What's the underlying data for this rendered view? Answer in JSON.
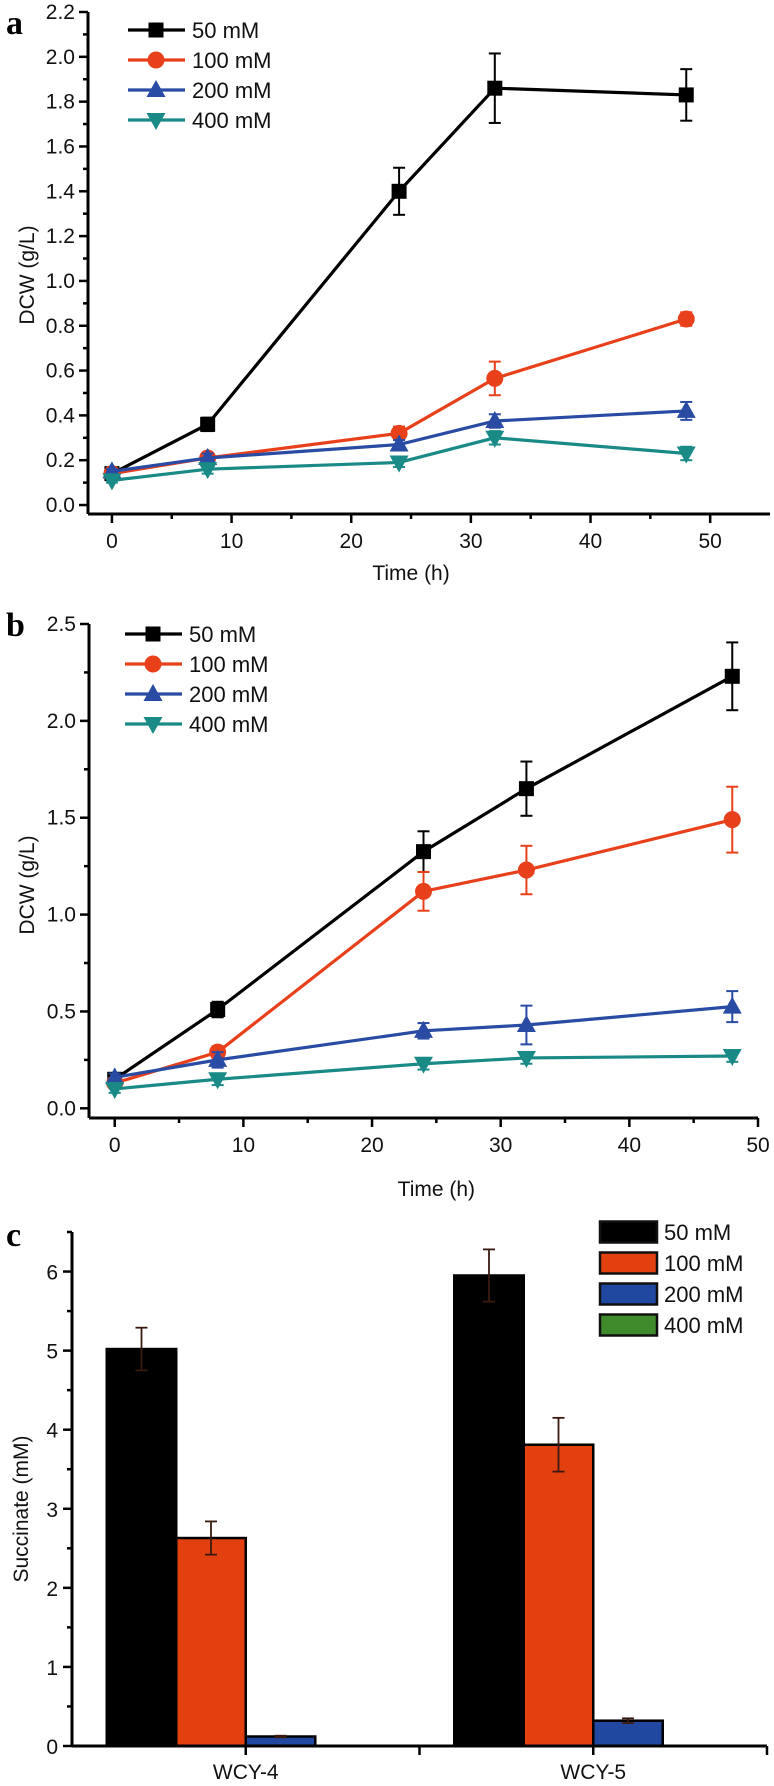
{
  "chart_data": [
    {
      "type": "line",
      "panel_label": "a",
      "xlabel": "Time (h)",
      "ylabel": "DCW (g/L)",
      "xlim": [
        -2,
        55
      ],
      "ylim": [
        -0.04,
        2.2
      ],
      "x": [
        0,
        8,
        24,
        32,
        48
      ],
      "xticks": [
        "0",
        "10",
        "20",
        "30",
        "40",
        "50"
      ],
      "yticks": [
        "0.0",
        "0.2",
        "0.4",
        "0.6",
        "0.8",
        "1.0",
        "1.2",
        "1.4",
        "1.6",
        "1.8",
        "2.0",
        "2.2"
      ],
      "grid": false,
      "legend_position": "top-left",
      "series": [
        {
          "name": "50 mM",
          "color": "#000000",
          "marker": "square",
          "values": [
            0.14,
            0.36,
            1.4,
            1.86,
            1.83
          ],
          "error": [
            0.01,
            0.03,
            0.105,
            0.155,
            0.115
          ]
        },
        {
          "name": "100 mM",
          "color": "#e8401a",
          "marker": "circle",
          "values": [
            0.14,
            0.21,
            0.32,
            0.565,
            0.83
          ],
          "error": [
            0.01,
            0.02,
            0.03,
            0.075,
            0.03
          ]
        },
        {
          "name": "200 mM",
          "color": "#2a4ba3",
          "marker": "triangle-up",
          "values": [
            0.15,
            0.21,
            0.27,
            0.375,
            0.42
          ],
          "error": [
            0.01,
            0.02,
            0.02,
            0.03,
            0.04
          ]
        },
        {
          "name": "400 mM",
          "color": "#1a8a86",
          "marker": "triangle-down",
          "values": [
            0.11,
            0.16,
            0.19,
            0.3,
            0.23
          ],
          "error": [
            0.01,
            0.02,
            0.02,
            0.03,
            0.03
          ]
        }
      ]
    },
    {
      "type": "line",
      "panel_label": "b",
      "xlabel": "Time (h)",
      "ylabel": "DCW (g/L)",
      "xlim": [
        -2,
        50
      ],
      "ylim": [
        -0.05,
        2.5
      ],
      "x": [
        0,
        8,
        24,
        32,
        48
      ],
      "xticks": [
        "0",
        "10",
        "20",
        "30",
        "40",
        "50"
      ],
      "yticks": [
        "0.0",
        "0.5",
        "1.0",
        "1.5",
        "2.0",
        "2.5"
      ],
      "grid": false,
      "legend_position": "top-left",
      "series": [
        {
          "name": "50 mM",
          "color": "#000000",
          "marker": "square",
          "values": [
            0.15,
            0.51,
            1.325,
            1.65,
            2.23
          ],
          "error": [
            0.02,
            0.04,
            0.105,
            0.14,
            0.175
          ]
        },
        {
          "name": "100 mM",
          "color": "#e8401a",
          "marker": "circle",
          "values": [
            0.13,
            0.29,
            1.12,
            1.23,
            1.49
          ],
          "error": [
            0.02,
            0.03,
            0.1,
            0.125,
            0.17
          ]
        },
        {
          "name": "200 mM",
          "color": "#2a4ba3",
          "marker": "triangle-up",
          "values": [
            0.16,
            0.25,
            0.4,
            0.43,
            0.525
          ],
          "error": [
            0.02,
            0.04,
            0.04,
            0.1,
            0.08
          ]
        },
        {
          "name": "400 mM",
          "color": "#1a8a86",
          "marker": "triangle-down",
          "values": [
            0.1,
            0.15,
            0.23,
            0.26,
            0.27
          ],
          "error": [
            0.02,
            0.03,
            0.03,
            0.03,
            0.03
          ]
        }
      ]
    },
    {
      "type": "bar",
      "panel_label": "c",
      "xlabel": "",
      "ylabel": "Succinate (mM)",
      "ylim": [
        0,
        6.5
      ],
      "categories": [
        "WCY-4",
        "WCY-5"
      ],
      "yticks": [
        "0",
        "1",
        "2",
        "3",
        "4",
        "5",
        "6"
      ],
      "grid": false,
      "legend_position": "top-right",
      "series": [
        {
          "name": "50 mM",
          "color": "#000000",
          "values": [
            5.02,
            5.95
          ],
          "error": [
            0.27,
            0.33
          ]
        },
        {
          "name": "100 mM",
          "color": "#e3400f",
          "values": [
            2.63,
            3.81
          ],
          "error": [
            0.21,
            0.34
          ]
        },
        {
          "name": "200 mM",
          "color": "#2148a0",
          "values": [
            0.12,
            0.32
          ],
          "error": [
            0.01,
            0.03
          ]
        },
        {
          "name": "400 mM",
          "color": "#3f8a2a",
          "values": [
            0,
            0
          ],
          "error": [
            0,
            0
          ]
        }
      ]
    }
  ]
}
